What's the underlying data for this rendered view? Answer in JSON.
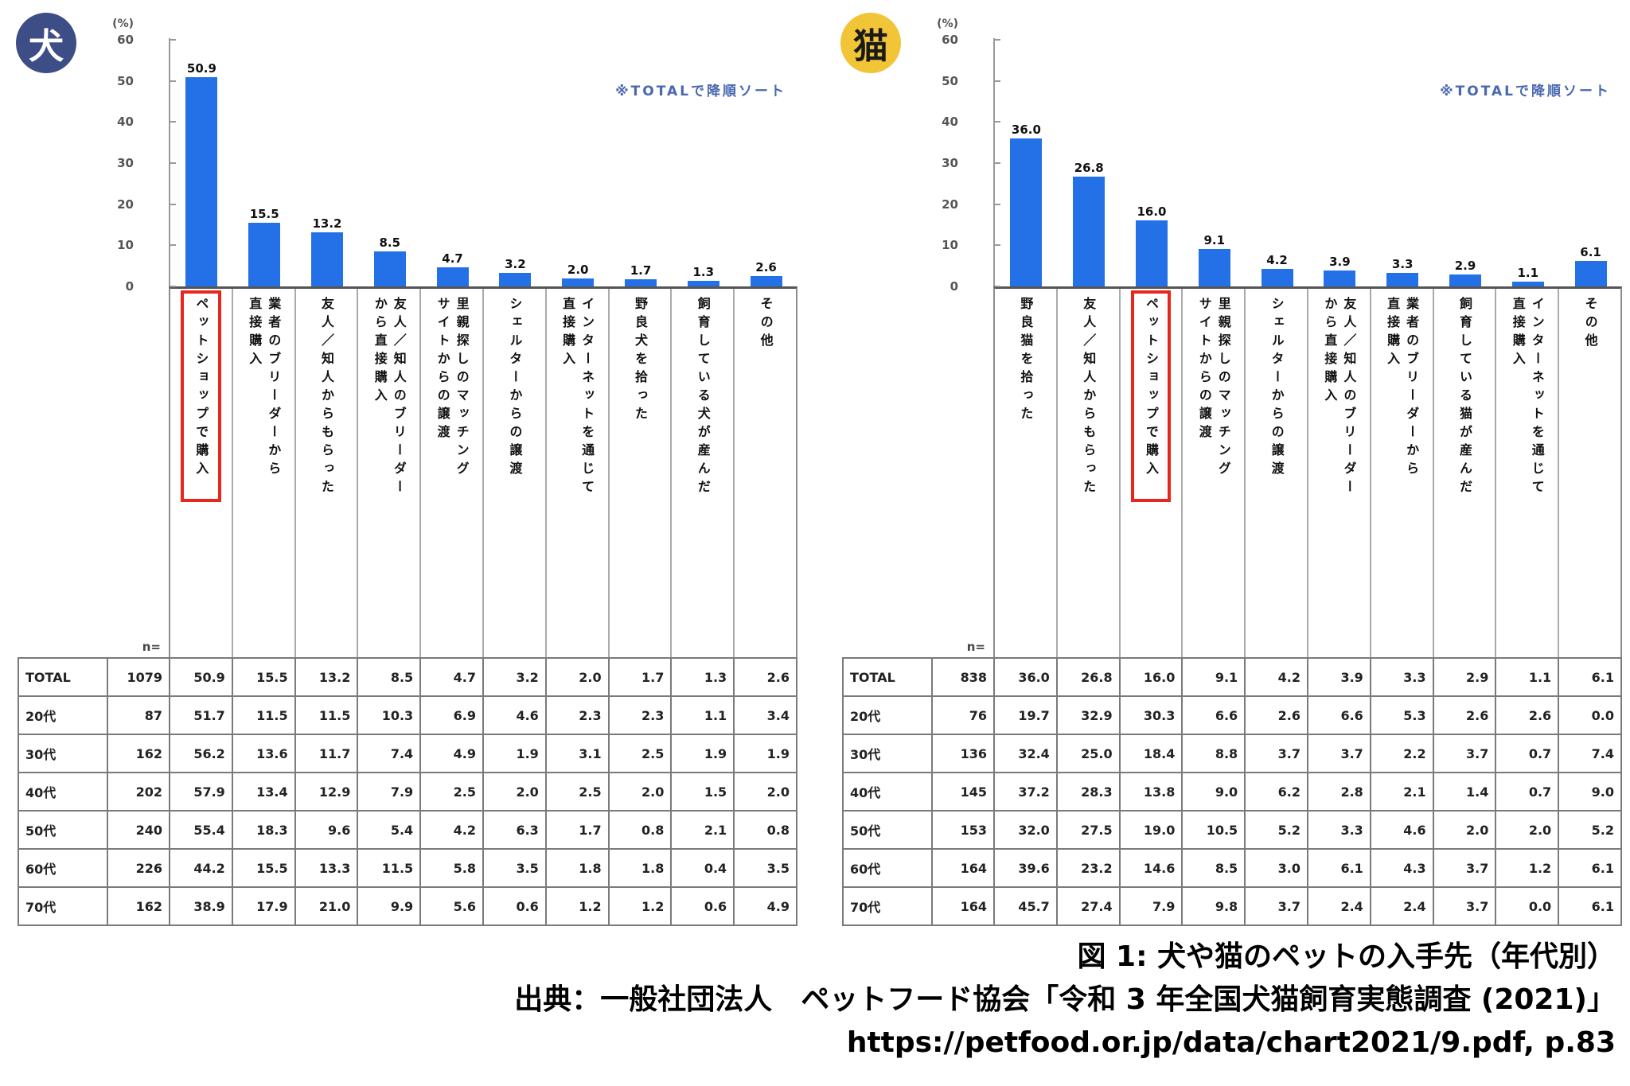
{
  "page": {
    "y_axis_unit": "(%)",
    "n_label": "n=",
    "caption": {
      "line1": "図 1: 犬や猫のペットの入手先（年代別）",
      "line2": "出典：一般社団法人　ペットフード協会「令和 3 年全国犬猫飼育実態調査 (2021)」",
      "line3": "https://petfood.or.jp/data/chart2021/9.pdf, p.83"
    }
  },
  "colors": {
    "bar": "#2470e6",
    "highlight_box": "#e8261c",
    "annotation_text": "#4a68b0",
    "dog_badge_bg": "#3d4d86",
    "dog_badge_text": "#ffffff",
    "cat_badge_bg": "#f2c437",
    "cat_badge_text": "#1a1a1a"
  },
  "chart_data": [
    {
      "type": "bar",
      "panel": "dog",
      "badge_label": "犬",
      "annotation": "※TOTALで降順ソート",
      "ylabel": "(%)",
      "ylim": [
        0,
        60
      ],
      "yticks": [
        0,
        10,
        20,
        30,
        40,
        50,
        60
      ],
      "grid": false,
      "legend": "none",
      "categories": [
        "ペットショップで購入",
        "業者のブリーダーから\n直接購入",
        "友人／知人からもらった",
        "友人／知人のブリーダー\nから直接購入",
        "里親探しのマッチング\nサイトからの譲渡",
        "シェルターからの譲渡",
        "インターネットを通じて\n直接購入",
        "野良犬を拾った",
        "飼育している犬が産んだ",
        "その他"
      ],
      "values": [
        50.9,
        15.5,
        13.2,
        8.5,
        4.7,
        3.2,
        2.0,
        1.7,
        1.3,
        2.6
      ],
      "highlight_index": 0,
      "table": {
        "row_labels": [
          "TOTAL",
          "20代",
          "30代",
          "40代",
          "50代",
          "60代",
          "70代"
        ],
        "n_values": [
          1079,
          87,
          162,
          202,
          240,
          226,
          162
        ],
        "rows": [
          [
            50.9,
            15.5,
            13.2,
            8.5,
            4.7,
            3.2,
            2.0,
            1.7,
            1.3,
            2.6
          ],
          [
            51.7,
            11.5,
            11.5,
            10.3,
            6.9,
            4.6,
            2.3,
            2.3,
            1.1,
            3.4
          ],
          [
            56.2,
            13.6,
            11.7,
            7.4,
            4.9,
            1.9,
            3.1,
            2.5,
            1.9,
            1.9
          ],
          [
            57.9,
            13.4,
            12.9,
            7.9,
            2.5,
            2.0,
            2.5,
            2.0,
            1.5,
            2.0
          ],
          [
            55.4,
            18.3,
            9.6,
            5.4,
            4.2,
            6.3,
            1.7,
            0.8,
            2.1,
            0.8
          ],
          [
            44.2,
            15.5,
            13.3,
            11.5,
            5.8,
            3.5,
            1.8,
            1.8,
            0.4,
            3.5
          ],
          [
            38.9,
            17.9,
            21.0,
            9.9,
            5.6,
            0.6,
            1.2,
            1.2,
            0.6,
            4.9
          ]
        ]
      }
    },
    {
      "type": "bar",
      "panel": "cat",
      "badge_label": "猫",
      "annotation": "※TOTALで降順ソート",
      "ylabel": "(%)",
      "ylim": [
        0,
        60
      ],
      "yticks": [
        0,
        10,
        20,
        30,
        40,
        50,
        60
      ],
      "grid": false,
      "legend": "none",
      "categories": [
        "野良猫を拾った",
        "友人／知人からもらった",
        "ペットショップで購入",
        "里親探しのマッチング\nサイトからの譲渡",
        "シェルターからの譲渡",
        "友人／知人のブリーダー\nから直接購入",
        "業者のブリーダーから\n直接購入",
        "飼育している猫が産んだ",
        "インターネットを通じて\n直接購入",
        "その他"
      ],
      "values": [
        36.0,
        26.8,
        16.0,
        9.1,
        4.2,
        3.9,
        3.3,
        2.9,
        1.1,
        6.1
      ],
      "highlight_index": 2,
      "table": {
        "row_labels": [
          "TOTAL",
          "20代",
          "30代",
          "40代",
          "50代",
          "60代",
          "70代"
        ],
        "n_values": [
          838,
          76,
          136,
          145,
          153,
          164,
          164
        ],
        "rows": [
          [
            36.0,
            26.8,
            16.0,
            9.1,
            4.2,
            3.9,
            3.3,
            2.9,
            1.1,
            6.1
          ],
          [
            19.7,
            32.9,
            30.3,
            6.6,
            2.6,
            6.6,
            5.3,
            2.6,
            2.6,
            0.0
          ],
          [
            32.4,
            25.0,
            18.4,
            8.8,
            3.7,
            3.7,
            2.2,
            3.7,
            0.7,
            7.4
          ],
          [
            37.2,
            28.3,
            13.8,
            9.0,
            6.2,
            2.8,
            2.1,
            1.4,
            0.7,
            9.0
          ],
          [
            32.0,
            27.5,
            19.0,
            10.5,
            5.2,
            3.3,
            4.6,
            2.0,
            2.0,
            5.2
          ],
          [
            39.6,
            23.2,
            14.6,
            8.5,
            3.0,
            6.1,
            4.3,
            3.7,
            1.2,
            6.1
          ],
          [
            45.7,
            27.4,
            7.9,
            9.8,
            3.7,
            2.4,
            2.4,
            3.7,
            0.0,
            6.1
          ]
        ]
      }
    }
  ]
}
